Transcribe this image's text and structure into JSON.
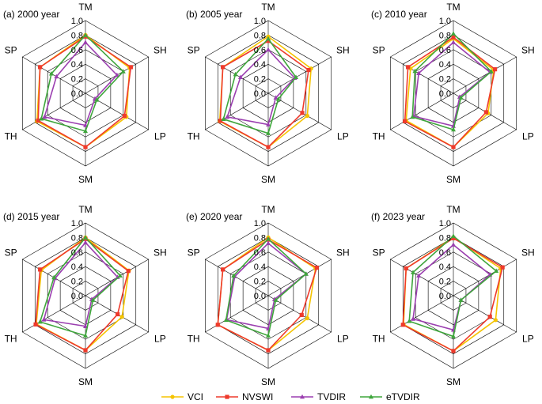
{
  "figure": {
    "legend_position": "bottom-center",
    "grid": true
  },
  "legend": [
    {
      "name": "VCI",
      "color": "#f5c400",
      "marker": "circle"
    },
    {
      "name": "NVSWI",
      "color": "#ee3a2c",
      "marker": "square"
    },
    {
      "name": "TVDIR",
      "color": "#9b3fb0",
      "marker": "triangle"
    },
    {
      "name": "eTVDIR",
      "color": "#3fa63c",
      "marker": "triangle"
    }
  ],
  "chart_data": [
    {
      "type": "radar",
      "title": "(a) 2000 year",
      "axes": [
        "TM",
        "SH",
        "LP",
        "SM",
        "TH",
        "SP"
      ],
      "ticks": [
        "0.0",
        "0.2",
        "0.4",
        "0.6",
        "0.8",
        "1.0"
      ],
      "rlim": [
        0,
        1
      ],
      "series": [
        {
          "name": "VCI",
          "values": [
            0.8,
            0.7,
            0.65,
            0.74,
            0.77,
            0.72
          ]
        },
        {
          "name": "NVSWI",
          "values": [
            0.78,
            0.72,
            0.62,
            0.74,
            0.75,
            0.72
          ]
        },
        {
          "name": "TVDIR",
          "values": [
            0.7,
            0.5,
            0.15,
            0.44,
            0.65,
            0.46
          ]
        },
        {
          "name": "eTVDIR",
          "values": [
            0.8,
            0.6,
            0.18,
            0.52,
            0.7,
            0.54
          ]
        }
      ]
    },
    {
      "type": "radar",
      "title": "(b) 2005 year",
      "axes": [
        "TM",
        "SH",
        "LP",
        "SM",
        "TH",
        "SP"
      ],
      "ticks": [
        "0.0",
        "0.2",
        "0.4",
        "0.6",
        "0.8",
        "1.0"
      ],
      "rlim": [
        0,
        1
      ],
      "series": [
        {
          "name": "VCI",
          "values": [
            0.78,
            0.68,
            0.62,
            0.74,
            0.77,
            0.72
          ]
        },
        {
          "name": "NVSWI",
          "values": [
            0.72,
            0.64,
            0.54,
            0.74,
            0.76,
            0.72
          ]
        },
        {
          "name": "TVDIR",
          "values": [
            0.6,
            0.42,
            0.12,
            0.43,
            0.65,
            0.44
          ]
        },
        {
          "name": "eTVDIR",
          "values": [
            0.75,
            0.44,
            0.16,
            0.55,
            0.71,
            0.52
          ]
        }
      ]
    },
    {
      "type": "radar",
      "title": "(c) 2010 year",
      "axes": [
        "TM",
        "SH",
        "LP",
        "SM",
        "TH",
        "SP"
      ],
      "ticks": [
        "0.0",
        "0.2",
        "0.4",
        "0.6",
        "0.8",
        "1.0"
      ],
      "rlim": [
        0,
        1
      ],
      "series": [
        {
          "name": "VCI",
          "values": [
            0.75,
            0.64,
            0.55,
            0.74,
            0.75,
            0.68
          ]
        },
        {
          "name": "NVSWI",
          "values": [
            0.77,
            0.66,
            0.52,
            0.74,
            0.77,
            0.72
          ]
        },
        {
          "name": "TVDIR",
          "values": [
            0.7,
            0.58,
            0.1,
            0.45,
            0.63,
            0.55
          ]
        },
        {
          "name": "eTVDIR",
          "values": [
            0.82,
            0.6,
            0.12,
            0.5,
            0.65,
            0.61
          ]
        }
      ]
    },
    {
      "type": "radar",
      "title": "(d) 2015 year",
      "axes": [
        "TM",
        "SH",
        "LP",
        "SM",
        "TH",
        "SP"
      ],
      "ticks": [
        "0.0",
        "0.2",
        "0.4",
        "0.6",
        "0.8",
        "1.0"
      ],
      "rlim": [
        0,
        1
      ],
      "series": [
        {
          "name": "VCI",
          "values": [
            0.8,
            0.69,
            0.58,
            0.75,
            0.78,
            0.7
          ]
        },
        {
          "name": "NVSWI",
          "values": [
            0.78,
            0.68,
            0.51,
            0.75,
            0.79,
            0.72
          ]
        },
        {
          "name": "TVDIR",
          "values": [
            0.73,
            0.51,
            0.1,
            0.42,
            0.66,
            0.48
          ]
        },
        {
          "name": "eTVDIR",
          "values": [
            0.8,
            0.55,
            0.12,
            0.55,
            0.72,
            0.5
          ]
        }
      ]
    },
    {
      "type": "radar",
      "title": "(e) 2020 year",
      "axes": [
        "TM",
        "SH",
        "LP",
        "SM",
        "TH",
        "SP"
      ],
      "ticks": [
        "0.0",
        "0.2",
        "0.4",
        "0.6",
        "0.8",
        "1.0"
      ],
      "rlim": [
        0,
        1
      ],
      "series": [
        {
          "name": "VCI",
          "values": [
            0.8,
            0.75,
            0.62,
            0.75,
            0.8,
            0.72
          ]
        },
        {
          "name": "NVSWI",
          "values": [
            0.77,
            0.77,
            0.53,
            0.75,
            0.8,
            0.72
          ]
        },
        {
          "name": "TVDIR",
          "values": [
            0.72,
            0.6,
            0.1,
            0.45,
            0.66,
            0.53
          ]
        },
        {
          "name": "eTVDIR",
          "values": [
            0.78,
            0.6,
            0.12,
            0.55,
            0.67,
            0.55
          ]
        }
      ]
    },
    {
      "type": "radar",
      "title": "(f) 2023 year",
      "axes": [
        "TM",
        "SH",
        "LP",
        "SM",
        "TH",
        "SP"
      ],
      "ticks": [
        "0.0",
        "0.2",
        "0.4",
        "0.6",
        "0.8",
        "1.0"
      ],
      "rlim": [
        0,
        1
      ],
      "series": [
        {
          "name": "VCI",
          "values": [
            0.8,
            0.75,
            0.67,
            0.76,
            0.79,
            0.75
          ]
        },
        {
          "name": "NVSWI",
          "values": [
            0.79,
            0.78,
            0.58,
            0.76,
            0.8,
            0.75
          ]
        },
        {
          "name": "TVDIR",
          "values": [
            0.7,
            0.58,
            0.12,
            0.47,
            0.64,
            0.55
          ]
        },
        {
          "name": "eTVDIR",
          "values": [
            0.82,
            0.68,
            0.12,
            0.56,
            0.7,
            0.64
          ]
        }
      ]
    }
  ]
}
